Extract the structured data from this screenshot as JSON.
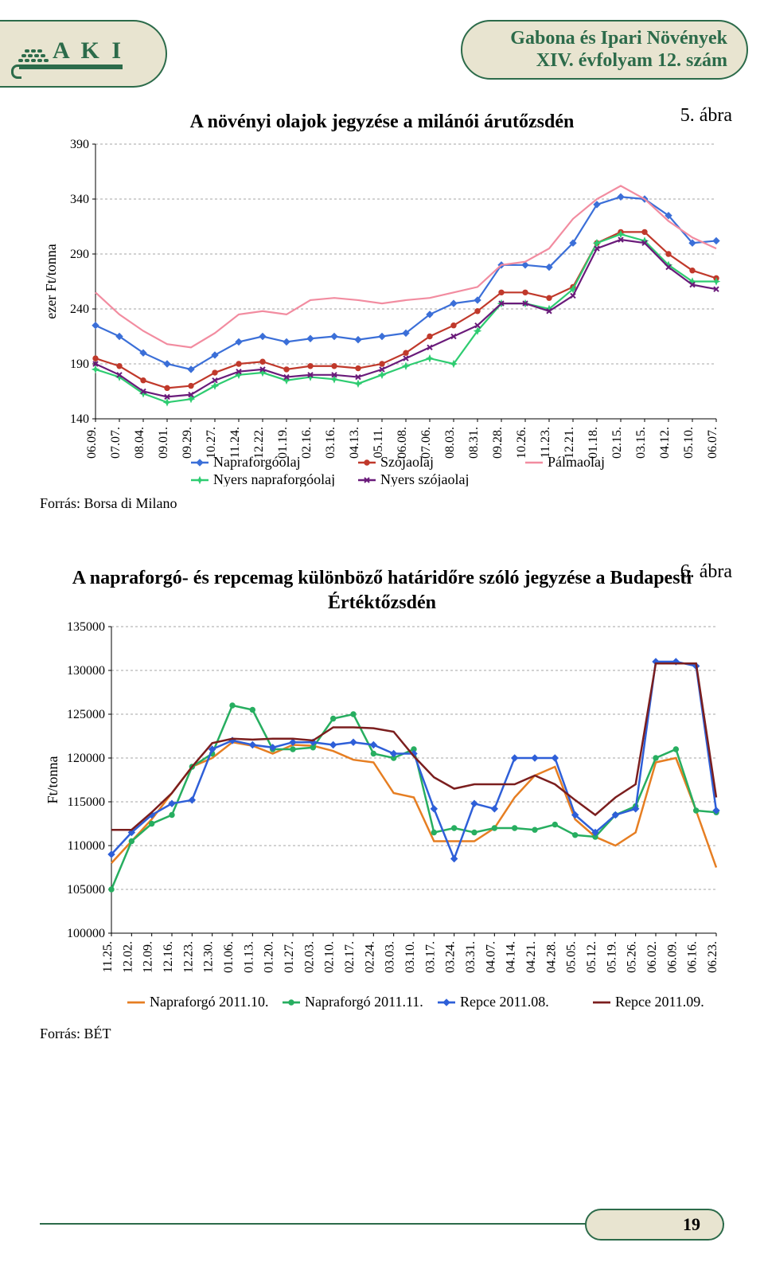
{
  "header": {
    "title_line1": "Gabona és Ipari Növények",
    "title_line2": "XIV. évfolyam 12. szám",
    "logo_text": "A K I"
  },
  "figure5": {
    "label": "5. ábra",
    "title": "A növényi olajok jegyzése a milánói árutőzsdén",
    "y_axis_label": "ezer Ft/tonna",
    "y_ticks": [
      140,
      190,
      240,
      290,
      340,
      390
    ],
    "categories": [
      "06.09.",
      "07.07.",
      "08.04.",
      "09.01.",
      "09.29.",
      "10.27.",
      "11.24.",
      "12.22.",
      "01.19.",
      "02.16.",
      "03.16.",
      "04.13.",
      "05.11.",
      "06.08.",
      "07.06.",
      "08.03.",
      "08.31.",
      "09.28.",
      "10.26.",
      "11.23.",
      "12.21.",
      "01.18.",
      "02.15.",
      "03.15.",
      "04.12.",
      "05.10.",
      "06.07."
    ],
    "grid_color": "#888888",
    "background_color": "#ffffff",
    "series": [
      {
        "name": "Napraforgóolaj",
        "color": "#3b6fd8",
        "marker": "diamond",
        "values": [
          225,
          215,
          200,
          190,
          185,
          198,
          210,
          215,
          210,
          213,
          215,
          212,
          215,
          218,
          235,
          245,
          248,
          280,
          280,
          278,
          300,
          335,
          342,
          340,
          325,
          300,
          302
        ]
      },
      {
        "name": "Szójaolaj",
        "color": "#c0392b",
        "marker": "circle",
        "values": [
          195,
          188,
          175,
          168,
          170,
          182,
          190,
          192,
          185,
          188,
          188,
          186,
          190,
          200,
          215,
          225,
          238,
          255,
          255,
          250,
          260,
          300,
          310,
          310,
          290,
          275,
          268
        ]
      },
      {
        "name": "Pálmaolaj",
        "color": "#f28ca0",
        "marker": "none",
        "values": [
          255,
          235,
          220,
          208,
          205,
          218,
          235,
          238,
          235,
          248,
          250,
          248,
          245,
          248,
          250,
          255,
          260,
          280,
          283,
          295,
          322,
          340,
          352,
          340,
          320,
          305,
          295
        ]
      },
      {
        "name": "Nyers napraforgóolaj",
        "color": "#2ecc71",
        "marker": "star",
        "values": [
          185,
          178,
          163,
          155,
          158,
          170,
          180,
          182,
          175,
          178,
          176,
          172,
          180,
          188,
          195,
          190,
          220,
          245,
          245,
          240,
          258,
          300,
          308,
          302,
          280,
          265,
          265
        ]
      },
      {
        "name": "Nyers szójaolaj",
        "color": "#6a1b7a",
        "marker": "x",
        "values": [
          190,
          180,
          165,
          160,
          162,
          175,
          183,
          185,
          178,
          180,
          180,
          178,
          185,
          195,
          205,
          215,
          225,
          245,
          245,
          238,
          252,
          295,
          303,
          300,
          278,
          262,
          258
        ]
      }
    ],
    "source": "Forrás: Borsa di Milano"
  },
  "figure6": {
    "label": "6. ábra",
    "title": "A napraforgó- és repcemag különböző határidőre szóló jegyzése a Budapesti",
    "subtitle": "Értéktőzsdén",
    "y_axis_label": "Ft/tonna",
    "y_ticks": [
      100000,
      105000,
      110000,
      115000,
      120000,
      125000,
      130000,
      135000
    ],
    "categories": [
      "11.25.",
      "12.02.",
      "12.09.",
      "12.16.",
      "12.23.",
      "12.30.",
      "01.06.",
      "01.13.",
      "01.20.",
      "01.27.",
      "02.03.",
      "02.10.",
      "02.17.",
      "02.24.",
      "03.03.",
      "03.10.",
      "03.17.",
      "03.24.",
      "03.31.",
      "04.07.",
      "04.14.",
      "04.21.",
      "04.28.",
      "05.05.",
      "05.12.",
      "05.19.",
      "05.26.",
      "06.02.",
      "06.09.",
      "06.16.",
      "06.23."
    ],
    "grid_color": "#888888",
    "background_color": "#ffffff",
    "series": [
      {
        "name": "Napraforgó 2011.10.",
        "color": "#e67e22",
        "marker": "none",
        "values": [
          108000,
          110500,
          113000,
          116000,
          119000,
          120000,
          121800,
          121400,
          120500,
          121500,
          121400,
          120800,
          119800,
          119500,
          116000,
          115500,
          110500,
          110500,
          110500,
          112000,
          115500,
          118000,
          119000,
          113000,
          111000,
          110000,
          111500,
          119500,
          120000,
          114000,
          107500
        ]
      },
      {
        "name": "Napraforgó 2011.11.",
        "color": "#27ae60",
        "marker": "circle",
        "values": [
          105000,
          110500,
          112500,
          113500,
          119000,
          120500,
          126000,
          125500,
          121000,
          121000,
          121200,
          124500,
          125000,
          120500,
          120000,
          121000,
          111500,
          112000,
          111500,
          112000,
          112000,
          111800,
          112400,
          111200,
          111000,
          113500,
          114500,
          120000,
          121000,
          114000,
          113800
        ]
      },
      {
        "name": "Repce 2011.08.",
        "color": "#2e5fd8",
        "marker": "diamond",
        "values": [
          109000,
          111500,
          113500,
          114800,
          115200,
          121000,
          122000,
          121500,
          121200,
          121800,
          121800,
          121500,
          121800,
          121500,
          120500,
          120500,
          114200,
          108500,
          114800,
          114200,
          120000,
          120000,
          120000,
          113500,
          111500,
          113500,
          114200,
          131000,
          131000,
          130500,
          114000
        ]
      },
      {
        "name": "Repce 2011.09.",
        "color": "#7b1e1e",
        "marker": "none",
        "values": [
          111800,
          111800,
          113800,
          116000,
          119000,
          121700,
          122200,
          122100,
          122200,
          122200,
          122000,
          123500,
          123500,
          123400,
          123000,
          120200,
          117800,
          116500,
          117000,
          117000,
          117000,
          118000,
          117000,
          115200,
          113500,
          115500,
          117000,
          130800,
          130800,
          130800,
          115500
        ]
      }
    ],
    "source": "Forrás: BÉT"
  },
  "footer": {
    "page": "19"
  }
}
